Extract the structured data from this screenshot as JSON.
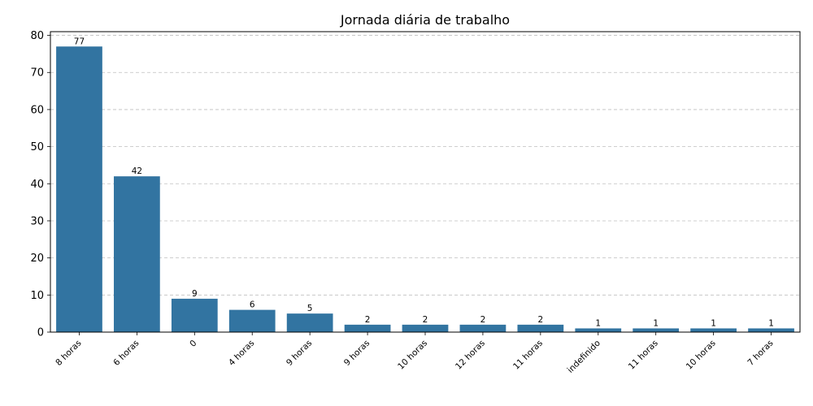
{
  "chart_data": {
    "type": "bar",
    "title": "Jornada diária de trabalho",
    "xlabel": "",
    "ylabel": "",
    "categories": [
      "8 horas",
      "6 horas",
      "0",
      "4 horas",
      "9 horas",
      "9 horas",
      "10 horas",
      "12 horas",
      "11 horas",
      "indefinido",
      "11 horas",
      "10 horas",
      "7 horas"
    ],
    "values": [
      77,
      42,
      9,
      6,
      5,
      2,
      2,
      2,
      2,
      1,
      1,
      1,
      1
    ],
    "ylim": [
      0,
      81
    ],
    "yticks": [
      0,
      10,
      20,
      30,
      40,
      50,
      60,
      70,
      80
    ],
    "grid": "y-dashed",
    "bar_color": "#3274a1",
    "data_labels": true
  }
}
